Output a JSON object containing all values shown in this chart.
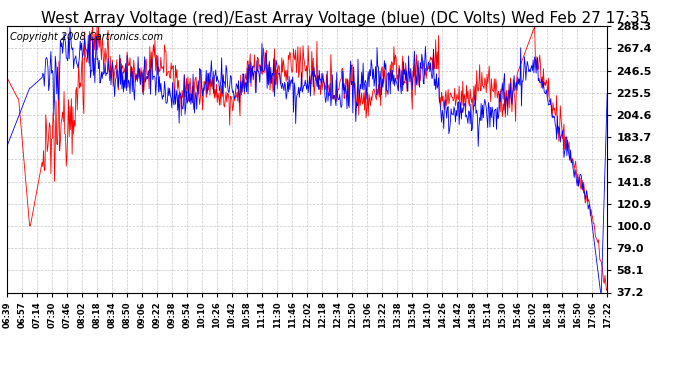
{
  "title": "West Array Voltage (red)/East Array Voltage (blue) (DC Volts) Wed Feb 27 17:35",
  "copyright": "Copyright 2008 Cartronics.com",
  "yticks": [
    37.2,
    58.1,
    79.0,
    100.0,
    120.9,
    141.8,
    162.8,
    183.7,
    204.6,
    225.5,
    246.5,
    267.4,
    288.3
  ],
  "ymin": 37.2,
  "ymax": 288.3,
  "xtick_labels": [
    "06:39",
    "06:57",
    "07:14",
    "07:30",
    "07:46",
    "08:02",
    "08:18",
    "08:34",
    "08:50",
    "09:06",
    "09:22",
    "09:38",
    "09:54",
    "10:10",
    "10:26",
    "10:42",
    "10:58",
    "11:14",
    "11:30",
    "11:46",
    "12:02",
    "12:18",
    "12:34",
    "12:50",
    "13:06",
    "13:22",
    "13:38",
    "13:54",
    "14:10",
    "14:26",
    "14:42",
    "14:58",
    "15:14",
    "15:30",
    "15:46",
    "16:02",
    "16:18",
    "16:34",
    "16:50",
    "17:06",
    "17:22"
  ],
  "background_color": "#ffffff",
  "grid_color": "#c8c8c8",
  "line_red_color": "#ff0000",
  "line_blue_color": "#0000ff",
  "title_fontsize": 11,
  "copyright_fontsize": 7
}
